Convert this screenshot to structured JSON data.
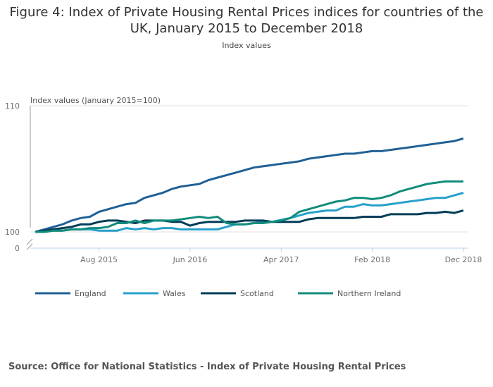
{
  "chart_data": {
    "type": "line",
    "title": "Figure 4: Index of Private Housing Rental Prices indices for countries of the UK, January 2015 to December 2018",
    "subtitle": "Index values",
    "ylabel": "Index values (January 2015=100)",
    "ylim": [
      100,
      110
    ],
    "y_ticks": [
      "110",
      "100",
      "0"
    ],
    "x_ticks": [
      {
        "label": "Aug 2015",
        "index": 7
      },
      {
        "label": "Jun 2016",
        "index": 17
      },
      {
        "label": "Apr 2017",
        "index": 27
      },
      {
        "label": "Feb 2018",
        "index": 37
      },
      {
        "label": "Dec 2018",
        "index": 47
      }
    ],
    "x_range": [
      "Jan 2015",
      "Dec 2018"
    ],
    "grid": "horizontal",
    "legend": "bottom",
    "series": [
      {
        "name": "England",
        "color": "#206095",
        "values": [
          100.0,
          100.2,
          100.4,
          100.6,
          100.9,
          101.1,
          101.2,
          101.6,
          101.8,
          102.0,
          102.2,
          102.3,
          102.7,
          102.9,
          103.1,
          103.4,
          103.6,
          103.7,
          103.8,
          104.1,
          104.3,
          104.5,
          104.7,
          104.9,
          105.1,
          105.2,
          105.3,
          105.4,
          105.5,
          105.6,
          105.8,
          105.9,
          106.0,
          106.1,
          106.2,
          106.2,
          106.3,
          106.4,
          106.4,
          106.5,
          106.6,
          106.7,
          106.8,
          106.9,
          107.0,
          107.1,
          107.2,
          107.4
        ]
      },
      {
        "name": "Wales",
        "color": "#27a0cc",
        "values": [
          100,
          100,
          100.1,
          100.1,
          100.2,
          100.2,
          100.2,
          100.1,
          100.1,
          100.1,
          100.3,
          100.2,
          100.3,
          100.2,
          100.3,
          100.3,
          100.2,
          100.2,
          100.2,
          100.2,
          100.2,
          100.4,
          100.6,
          100.6,
          100.7,
          100.8,
          100.8,
          100.95,
          101.1,
          101.3,
          101.5,
          101.6,
          101.7,
          101.7,
          102.0,
          102.0,
          102.2,
          102.1,
          102.1,
          102.2,
          102.3,
          102.4,
          102.5,
          102.6,
          102.7,
          102.7,
          102.9,
          103.1
        ]
      },
      {
        "name": "Scotland",
        "color": "#003c57",
        "values": [
          100,
          100.1,
          100.2,
          100.3,
          100.4,
          100.6,
          100.6,
          100.8,
          100.9,
          100.9,
          100.8,
          100.7,
          100.9,
          100.9,
          100.9,
          100.8,
          100.8,
          100.5,
          100.7,
          100.8,
          100.8,
          100.8,
          100.8,
          100.9,
          100.9,
          100.9,
          100.8,
          100.8,
          100.8,
          100.8,
          101.0,
          101.1,
          101.1,
          101.1,
          101.1,
          101.1,
          101.2,
          101.2,
          101.2,
          101.4,
          101.4,
          101.4,
          101.4,
          101.5,
          101.5,
          101.6,
          101.5,
          101.7
        ]
      },
      {
        "name": "Northern Ireland",
        "color": "#118c7b",
        "values": [
          100,
          100,
          100.1,
          100.1,
          100.2,
          100.2,
          100.3,
          100.3,
          100.4,
          100.7,
          100.7,
          100.9,
          100.7,
          100.9,
          100.9,
          100.9,
          101.0,
          101.1,
          101.2,
          101.1,
          101.2,
          100.7,
          100.6,
          100.6,
          100.7,
          100.7,
          100.8,
          100.9,
          101.1,
          101.6,
          101.8,
          102.0,
          102.2,
          102.4,
          102.5,
          102.7,
          102.7,
          102.6,
          102.7,
          102.9,
          103.2,
          103.4,
          103.6,
          103.8,
          103.9,
          104.0,
          104.0,
          104.0
        ]
      }
    ]
  },
  "source": "Source: Office for National Statistics - Index of Private Housing Rental Prices"
}
